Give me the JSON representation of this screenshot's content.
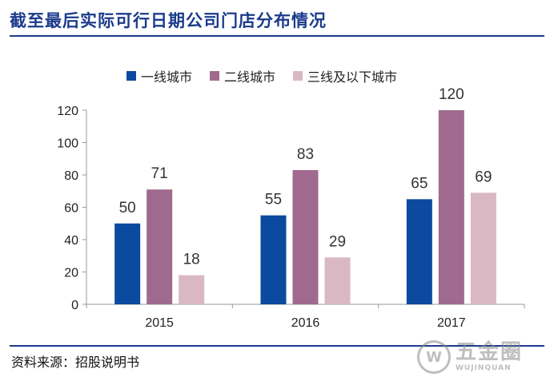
{
  "header": {
    "title": "截至最后实际可行日期公司门店分布情况"
  },
  "footer": {
    "source": "资料来源：招股说明书"
  },
  "watermark": {
    "cn": "五金圈",
    "en": "WUJINQUAN",
    "badge": "W"
  },
  "chart_data": {
    "type": "bar",
    "categories": [
      "2015",
      "2016",
      "2017"
    ],
    "series": [
      {
        "name": "一线城市",
        "values": [
          50,
          55,
          65
        ],
        "color": "#0b4a9e"
      },
      {
        "name": "二线城市",
        "values": [
          71,
          83,
          120
        ],
        "color": "#a06a8e"
      },
      {
        "name": "三线及以下城市",
        "values": [
          18,
          29,
          69
        ],
        "color": "#d9b8c4"
      }
    ],
    "yticks": [
      "0",
      "20",
      "40",
      "60",
      "80",
      "100",
      "120"
    ],
    "ylim": [
      0,
      120
    ],
    "grid": false,
    "legend_position": "top",
    "data_labels": true
  }
}
